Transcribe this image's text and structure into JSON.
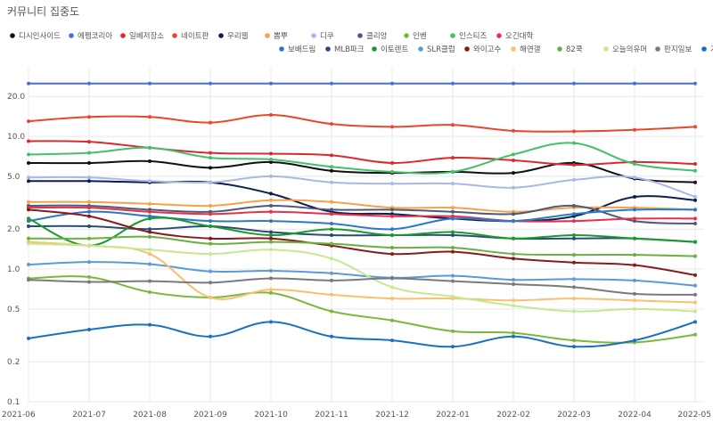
{
  "chart_data": {
    "type": "line",
    "title": "커뮤니티 집중도",
    "yscale": "log",
    "ylim": [
      0.1,
      30
    ],
    "yticks": [
      0.1,
      0.2,
      0.5,
      1.0,
      2.0,
      5.0,
      10.0,
      20.0
    ],
    "ytick_labels": [
      "0.1",
      "0.2",
      "0.5",
      "1.0",
      "2.0",
      "5.0",
      "10.0",
      "20.0"
    ],
    "grid": true,
    "legend_position": "top",
    "x": [
      "2021-06",
      "2021-07",
      "2021-08",
      "2021-09",
      "2021-10",
      "2021-11",
      "2021-12",
      "2022-01",
      "2022-02",
      "2022-03",
      "2022-04",
      "2022-05"
    ],
    "series": [
      {
        "name": "디시인사이드",
        "color": "#111111",
        "values": [
          6.3,
          6.3,
          6.5,
          5.8,
          6.4,
          5.5,
          5.3,
          5.4,
          5.3,
          6.3,
          4.8,
          4.5
        ]
      },
      {
        "name": "에펨코리아",
        "color": "#4a6fd8",
        "values": [
          25.0,
          25.0,
          25.0,
          25.0,
          25.0,
          25.0,
          25.0,
          25.0,
          25.0,
          25.0,
          25.0,
          25.0
        ]
      },
      {
        "name": "일베저장소",
        "color": "#dc2a2a",
        "values": [
          9.2,
          9.1,
          8.2,
          7.5,
          7.4,
          7.2,
          6.3,
          6.9,
          6.6,
          6.1,
          6.4,
          6.2
        ]
      },
      {
        "name": "네이트판",
        "color": "#e8472a",
        "values": [
          13.0,
          14.0,
          14.0,
          12.7,
          14.5,
          12.4,
          11.8,
          12.2,
          11.0,
          10.9,
          11.2,
          11.8
        ]
      },
      {
        "name": "우리웹",
        "color": "#0d1d4f",
        "values": [
          4.6,
          4.6,
          4.5,
          4.5,
          3.7,
          2.7,
          2.6,
          2.4,
          2.3,
          2.5,
          3.5,
          3.3
        ]
      },
      {
        "name": "뽐뿌",
        "color": "#f5a24a",
        "values": [
          3.2,
          3.2,
          3.1,
          3.0,
          3.3,
          3.2,
          2.9,
          2.9,
          2.7,
          2.9,
          2.9,
          2.8
        ]
      },
      {
        "name": "디쿠",
        "color": "#a9b8ea",
        "values": [
          4.9,
          4.9,
          4.6,
          4.5,
          5.0,
          4.5,
          4.4,
          4.4,
          4.1,
          4.7,
          4.9,
          3.5
        ]
      },
      {
        "name": "클리앙",
        "color": "#4d5a7a",
        "values": [
          3.0,
          3.0,
          2.8,
          2.7,
          3.0,
          2.8,
          2.8,
          2.7,
          2.6,
          3.0,
          2.3,
          2.2
        ]
      },
      {
        "name": "인벤",
        "color": "#7ab83a",
        "values": [
          0.85,
          0.87,
          0.67,
          0.61,
          0.66,
          0.48,
          0.41,
          0.34,
          0.33,
          0.29,
          0.28,
          0.32
        ]
      },
      {
        "name": "인스티즈",
        "color": "#45c06a",
        "values": [
          7.3,
          7.5,
          8.2,
          6.9,
          6.7,
          5.9,
          5.4,
          5.4,
          7.3,
          8.9,
          6.2,
          5.5
        ]
      },
      {
        "name": "오긴대학",
        "color": "#e8304a",
        "values": [
          2.9,
          2.9,
          2.7,
          2.6,
          2.7,
          2.6,
          2.5,
          2.5,
          2.3,
          2.3,
          2.4,
          2.4
        ]
      },
      {
        "name": "보배드림",
        "color": "#2a78c8",
        "values": [
          2.3,
          2.7,
          2.5,
          2.3,
          2.3,
          2.2,
          2.0,
          2.4,
          2.3,
          2.6,
          2.8,
          2.8
        ]
      },
      {
        "name": "MLB파크",
        "color": "#2a4a7a",
        "values": [
          2.1,
          2.1,
          2.0,
          2.1,
          1.9,
          1.8,
          1.8,
          1.8,
          1.7,
          1.7,
          1.7,
          1.6
        ]
      },
      {
        "name": "이토렌트",
        "color": "#1a9a2a",
        "values": [
          2.4,
          1.5,
          2.4,
          2.1,
          1.8,
          2.0,
          1.8,
          1.9,
          1.7,
          1.8,
          1.7,
          1.6
        ]
      },
      {
        "name": "SLR클럽",
        "color": "#5a9ad8",
        "values": [
          1.08,
          1.13,
          1.09,
          0.96,
          0.97,
          0.93,
          0.86,
          0.89,
          0.83,
          0.84,
          0.82,
          0.75
        ]
      },
      {
        "name": "와이고수",
        "color": "#8a1a1a",
        "values": [
          2.8,
          2.5,
          1.9,
          1.7,
          1.7,
          1.5,
          1.3,
          1.35,
          1.2,
          1.12,
          1.07,
          0.9
        ]
      },
      {
        "name": "해연갤",
        "color": "#f8c070",
        "values": [
          1.6,
          1.5,
          1.3,
          0.61,
          0.7,
          0.64,
          0.6,
          0.6,
          0.58,
          0.6,
          0.58,
          0.56
        ]
      },
      {
        "name": "82쿡",
        "color": "#6ab040",
        "values": [
          1.7,
          1.7,
          1.75,
          1.55,
          1.6,
          1.55,
          1.45,
          1.45,
          1.3,
          1.28,
          1.28,
          1.25
        ]
      },
      {
        "name": "오늘의유머",
        "color": "#c8e890",
        "values": [
          1.55,
          1.5,
          1.4,
          1.3,
          1.4,
          1.2,
          0.73,
          0.62,
          0.53,
          0.48,
          0.5,
          0.48
        ]
      },
      {
        "name": "판지일보",
        "color": "#7a7a7a",
        "values": [
          0.83,
          0.8,
          0.81,
          0.79,
          0.85,
          0.82,
          0.85,
          0.81,
          0.77,
          0.73,
          0.65,
          0.64
        ]
      },
      {
        "name": "가생이닷컴",
        "color": "#1a70c0",
        "values": [
          0.3,
          0.35,
          0.38,
          0.31,
          0.4,
          0.31,
          0.29,
          0.26,
          0.31,
          0.26,
          0.29,
          0.4
        ]
      }
    ]
  }
}
